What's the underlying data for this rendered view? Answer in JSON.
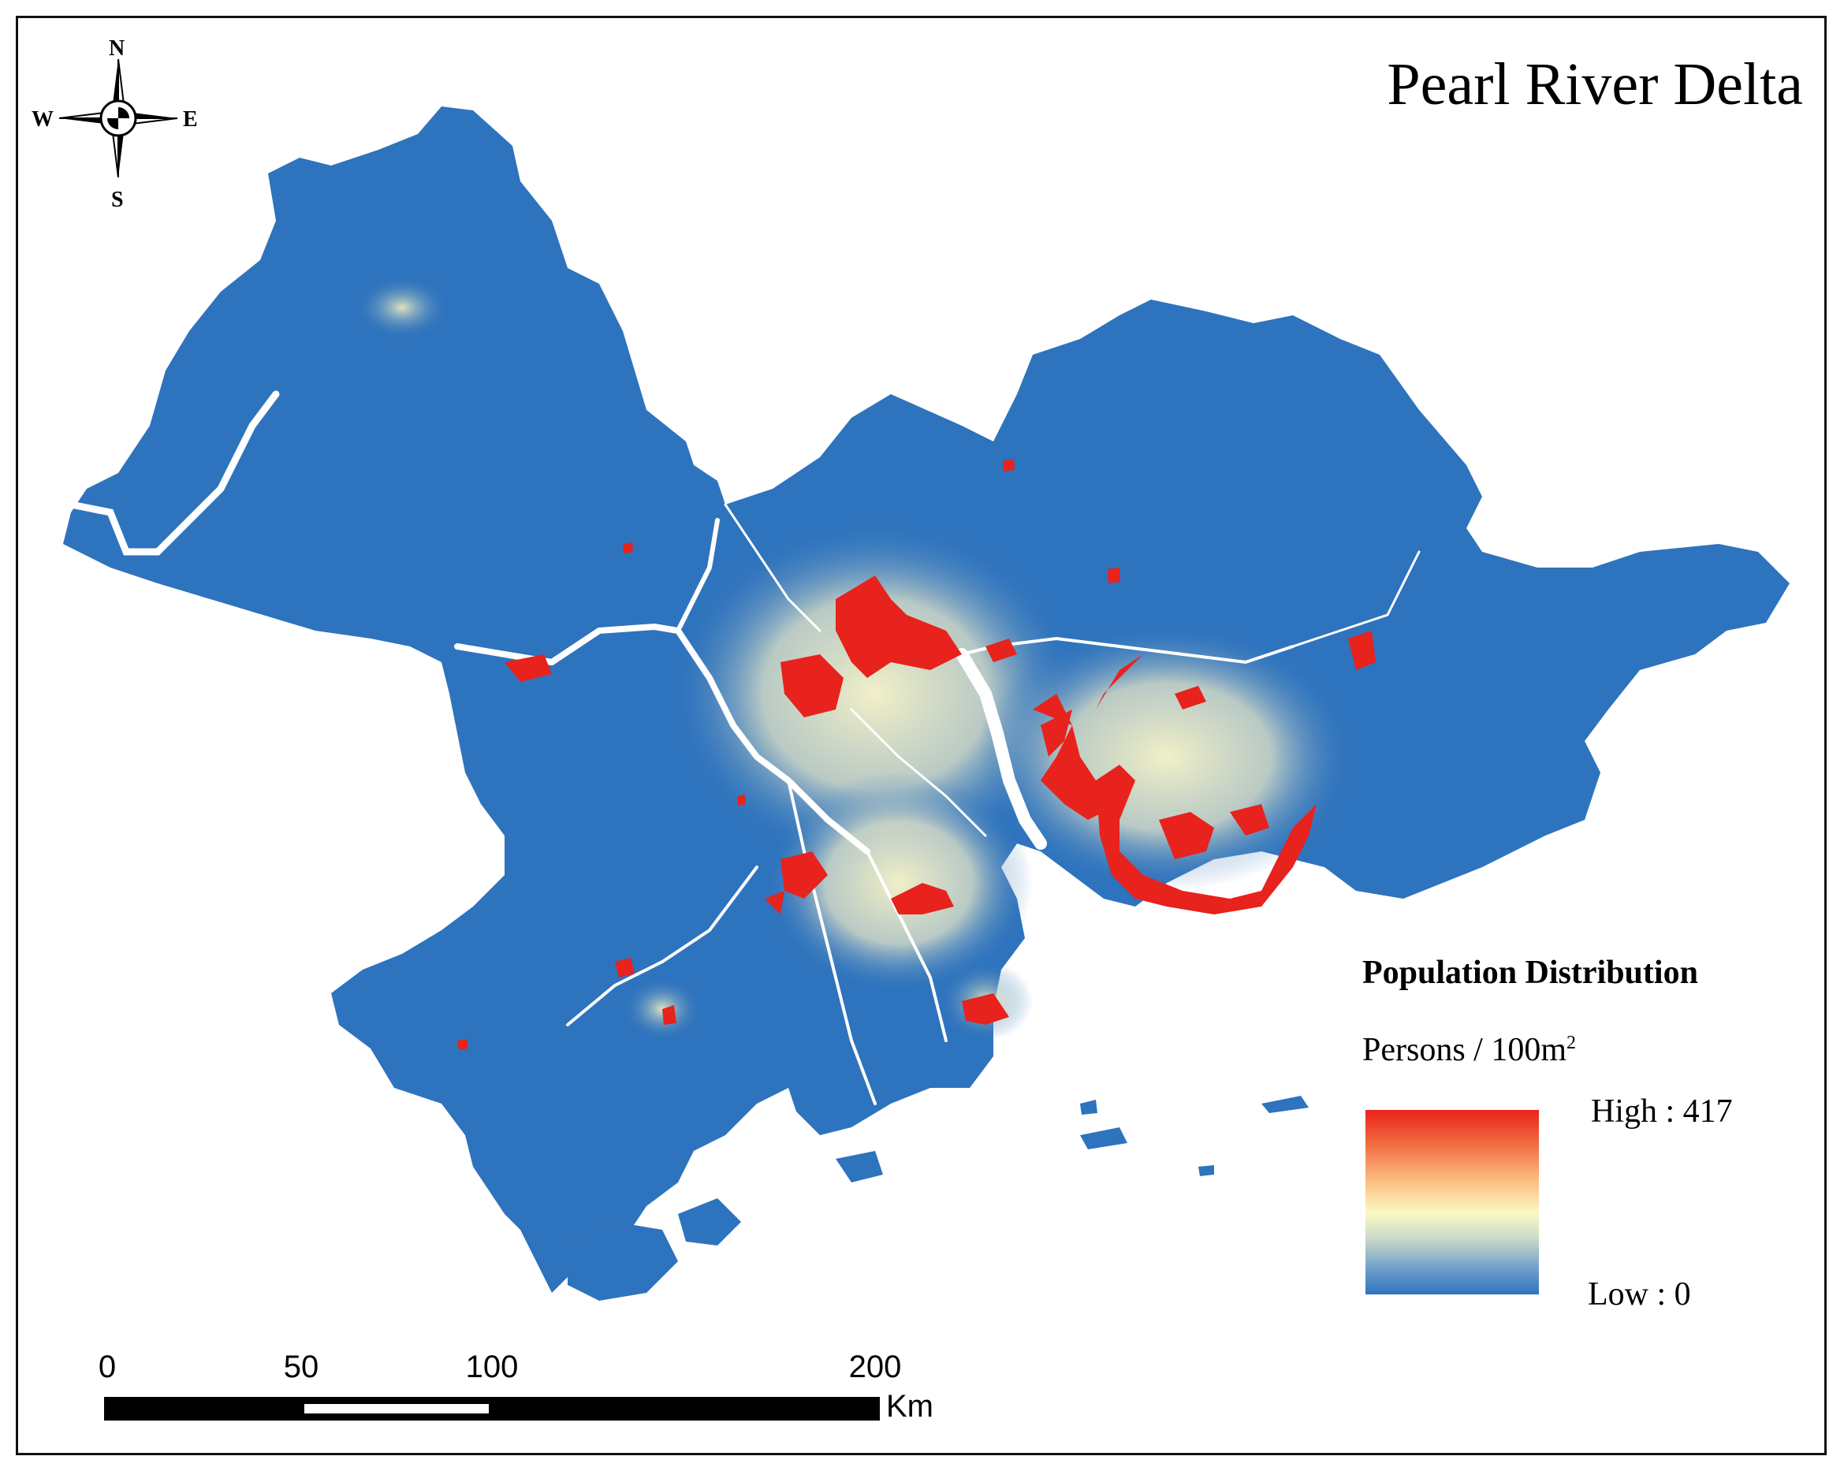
{
  "map": {
    "title": "Pearl River Delta",
    "compass": {
      "north": "N",
      "south": "S",
      "east": "E",
      "west": "W",
      "icon": "compass-rose-icon"
    },
    "legend": {
      "title": "Population Distribution",
      "units_base": "Persons / 100m",
      "units_sup": "2",
      "high_label": "High : 417",
      "low_label": "Low : 0",
      "high_value": 417,
      "low_value": 0,
      "colors": [
        "#e8221c",
        "#fbc486",
        "#fbf8c4",
        "#6f9fca",
        "#2f73c0"
      ]
    },
    "scale_bar": {
      "ticks": [
        "0",
        "50",
        "100",
        "200"
      ],
      "unit": "Km"
    },
    "colors": {
      "land_base": "#2e73bd",
      "urban_high": "#e8221c",
      "urban_mid": "#f7c98e",
      "periurban": "#f2eec0",
      "water": "#ffffff"
    }
  }
}
